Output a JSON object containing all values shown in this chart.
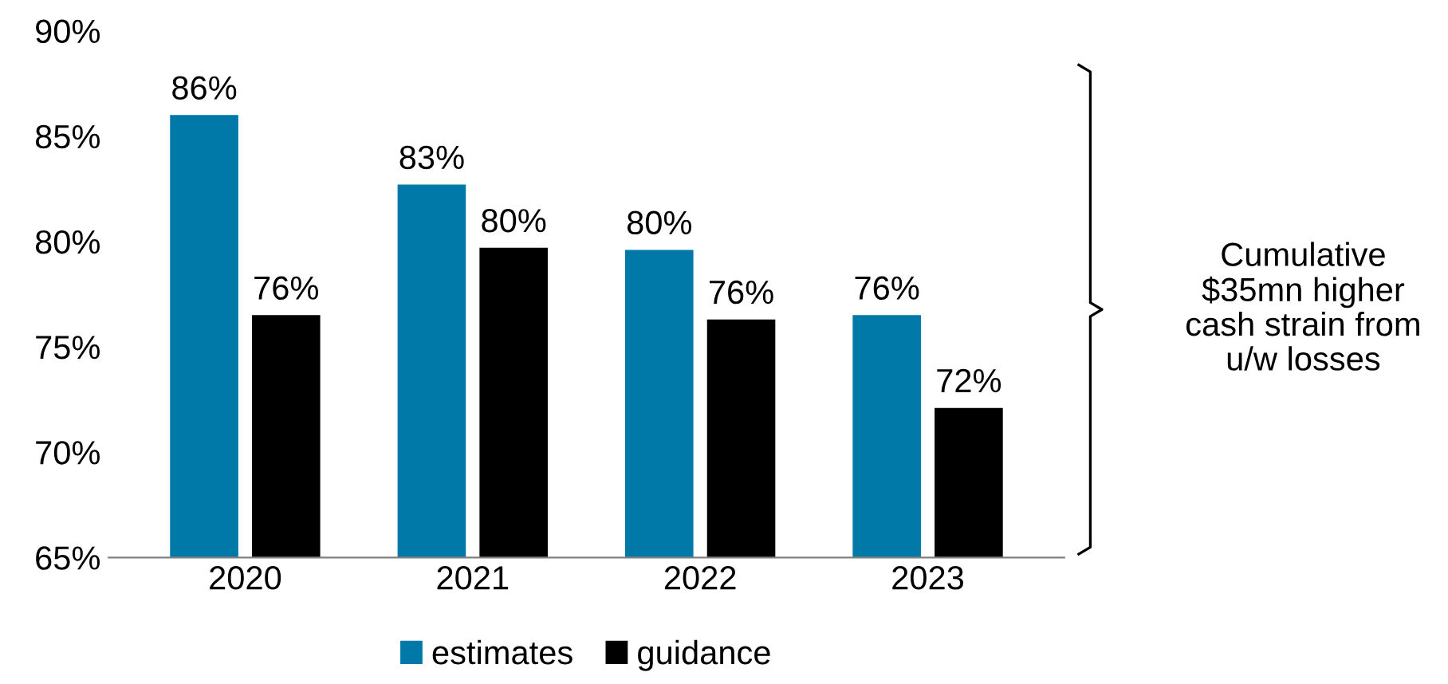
{
  "chart_data": {
    "type": "bar",
    "categories": [
      "2020",
      "2021",
      "2022",
      "2023"
    ],
    "series": [
      {
        "name": "estimates",
        "color": "#0078a8",
        "values": [
          86,
          82.7,
          79.6,
          76.5
        ],
        "value_labels": [
          "86%",
          "83%",
          "80%",
          "76%"
        ]
      },
      {
        "name": "guidance",
        "color": "#000000",
        "values": [
          76.5,
          79.7,
          76.3,
          72.1
        ],
        "value_labels": [
          "76%",
          "80%",
          "76%",
          "72%"
        ]
      }
    ],
    "ylim": [
      65,
      90
    ],
    "yticks": [
      {
        "value": 65,
        "label": "65%"
      },
      {
        "value": 70,
        "label": "70%"
      },
      {
        "value": 75,
        "label": "75%"
      },
      {
        "value": 80,
        "label": "80%"
      },
      {
        "value": 85,
        "label": "85%"
      },
      {
        "value": 90,
        "label": "90%"
      }
    ],
    "grid": false,
    "legend": "bottom",
    "annotations": [
      "Cumulative\n$35mn higher\ncash strain from\nu/w losses"
    ]
  }
}
